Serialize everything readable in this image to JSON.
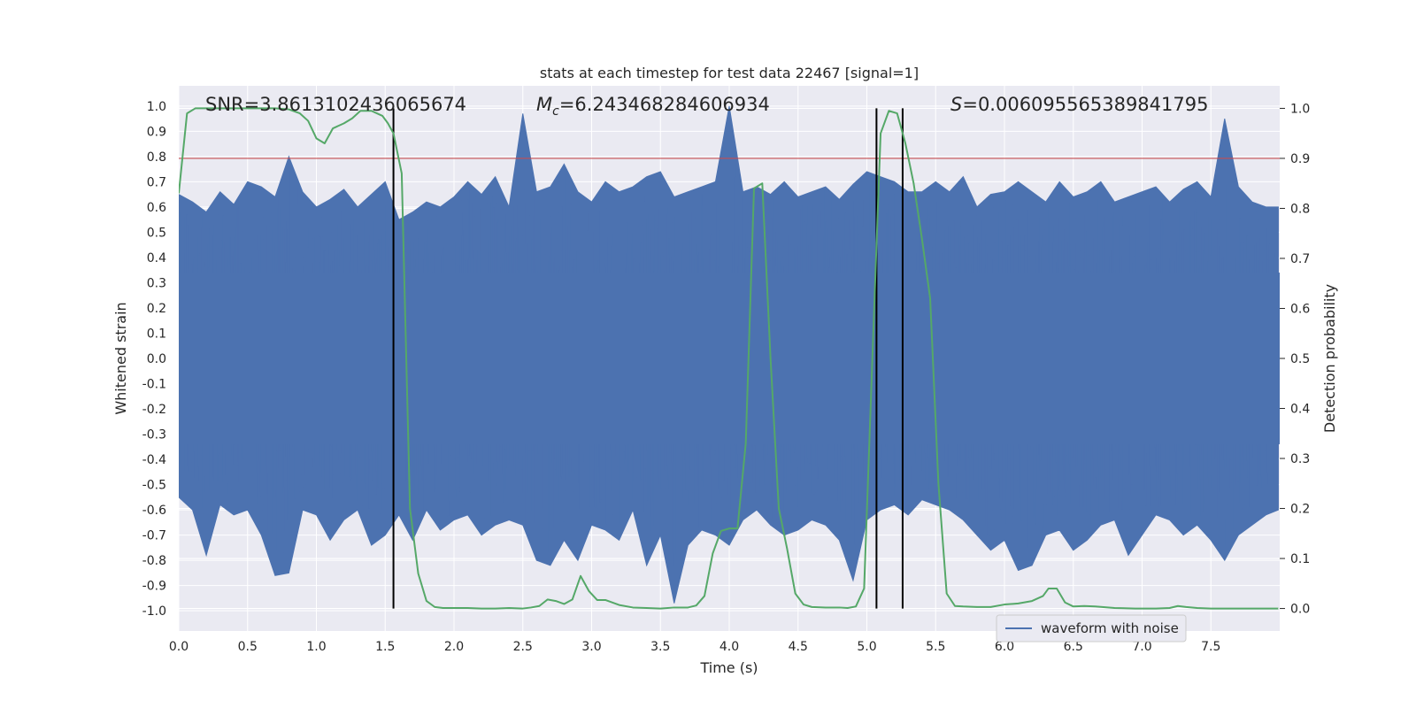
{
  "chart_data": {
    "type": "line",
    "title": "stats at each timestep for test data 22467 [signal=1]",
    "xlabel": "Time (s)",
    "ylabel": "Whitened strain",
    "y2label": "Detection probability",
    "xlim": [
      0.0,
      8.0
    ],
    "ylim": [
      -1.08,
      1.08
    ],
    "y2lim": [
      -0.045,
      1.045
    ],
    "xticks": [
      "0.0",
      "0.5",
      "1.0",
      "1.5",
      "2.0",
      "2.5",
      "3.0",
      "3.5",
      "4.0",
      "4.5",
      "5.0",
      "5.5",
      "6.0",
      "6.5",
      "7.0",
      "7.5"
    ],
    "xtick_values": [
      0.0,
      0.5,
      1.0,
      1.5,
      2.0,
      2.5,
      3.0,
      3.5,
      4.0,
      4.5,
      5.0,
      5.5,
      6.0,
      6.5,
      7.0,
      7.5
    ],
    "yticks": [
      "1.0",
      "0.9",
      "0.8",
      "0.7",
      "0.6",
      "0.5",
      "0.4",
      "0.3",
      "0.2",
      "0.1",
      "0.0",
      "-0.1",
      "-0.2",
      "-0.3",
      "-0.4",
      "-0.5",
      "-0.6",
      "-0.7",
      "-0.8",
      "-0.9",
      "-1.0"
    ],
    "ytick_values": [
      1.0,
      0.9,
      0.8,
      0.7,
      0.6,
      0.5,
      0.4,
      0.3,
      0.2,
      0.1,
      0.0,
      -0.1,
      -0.2,
      -0.3,
      -0.4,
      -0.5,
      -0.6,
      -0.7,
      -0.8,
      -0.9,
      -1.0
    ],
    "y2ticks": [
      "1.0",
      "0.9",
      "0.8",
      "0.7",
      "0.6",
      "0.5",
      "0.4",
      "0.3",
      "0.2",
      "0.1",
      "0.0"
    ],
    "y2tick_values": [
      1.0,
      0.9,
      0.8,
      0.7,
      0.6,
      0.5,
      0.4,
      0.3,
      0.2,
      0.1,
      0.0
    ],
    "annotations": {
      "snr": "SNR=3.8613102436065674",
      "mc_symbol": "M",
      "mc_subscript": "c",
      "mc_value": "=6.243468284606934",
      "s_symbol": "S",
      "s_value": "=0.006095565389841795"
    },
    "threshold": 0.9,
    "vlines": [
      1.56,
      5.07,
      5.26
    ],
    "series": [
      {
        "name": "waveform with noise",
        "color": "#4c72b0",
        "envelope_x": [
          0.0,
          0.1,
          0.2,
          0.3,
          0.4,
          0.5,
          0.6,
          0.7,
          0.8,
          0.9,
          1.0,
          1.1,
          1.2,
          1.3,
          1.4,
          1.5,
          1.6,
          1.7,
          1.8,
          1.9,
          2.0,
          2.1,
          2.2,
          2.3,
          2.4,
          2.5,
          2.6,
          2.7,
          2.8,
          2.9,
          3.0,
          3.1,
          3.2,
          3.3,
          3.4,
          3.5,
          3.6,
          3.7,
          3.8,
          3.9,
          4.0,
          4.1,
          4.2,
          4.3,
          4.4,
          4.5,
          4.6,
          4.7,
          4.8,
          4.9,
          5.0,
          5.1,
          5.2,
          5.3,
          5.4,
          5.5,
          5.6,
          5.7,
          5.8,
          5.9,
          6.0,
          6.1,
          6.2,
          6.3,
          6.4,
          6.5,
          6.6,
          6.7,
          6.8,
          6.9,
          7.0,
          7.1,
          7.2,
          7.3,
          7.4,
          7.5,
          7.6,
          7.7,
          7.8,
          7.9,
          7.99
        ],
        "envelope_max": [
          0.65,
          0.62,
          0.58,
          0.66,
          0.61,
          0.7,
          0.68,
          0.64,
          0.8,
          0.66,
          0.6,
          0.63,
          0.67,
          0.6,
          0.65,
          0.7,
          0.55,
          0.58,
          0.62,
          0.6,
          0.64,
          0.7,
          0.65,
          0.72,
          0.6,
          0.97,
          0.66,
          0.68,
          0.77,
          0.66,
          0.62,
          0.7,
          0.66,
          0.68,
          0.72,
          0.74,
          0.64,
          0.66,
          0.68,
          0.7,
          1.0,
          0.66,
          0.68,
          0.65,
          0.7,
          0.64,
          0.66,
          0.68,
          0.63,
          0.69,
          0.74,
          0.72,
          0.7,
          0.66,
          0.66,
          0.7,
          0.66,
          0.72,
          0.6,
          0.65,
          0.66,
          0.7,
          0.66,
          0.62,
          0.7,
          0.64,
          0.66,
          0.7,
          0.62,
          0.64,
          0.66,
          0.68,
          0.62,
          0.67,
          0.7,
          0.64,
          0.95,
          0.68,
          0.62,
          0.6,
          0.6
        ],
        "envelope_min": [
          -0.55,
          -0.6,
          -0.78,
          -0.58,
          -0.62,
          -0.6,
          -0.7,
          -0.86,
          -0.85,
          -0.6,
          -0.62,
          -0.72,
          -0.64,
          -0.6,
          -0.74,
          -0.7,
          -0.62,
          -0.72,
          -0.6,
          -0.68,
          -0.64,
          -0.62,
          -0.7,
          -0.66,
          -0.64,
          -0.66,
          -0.8,
          -0.82,
          -0.72,
          -0.8,
          -0.66,
          -0.68,
          -0.72,
          -0.6,
          -0.82,
          -0.7,
          -0.97,
          -0.74,
          -0.68,
          -0.7,
          -0.74,
          -0.64,
          -0.6,
          -0.66,
          -0.7,
          -0.68,
          -0.64,
          -0.66,
          -0.72,
          -0.88,
          -0.64,
          -0.6,
          -0.58,
          -0.62,
          -0.56,
          -0.58,
          -0.6,
          -0.64,
          -0.7,
          -0.76,
          -0.72,
          -0.84,
          -0.82,
          -0.7,
          -0.68,
          -0.76,
          -0.72,
          -0.66,
          -0.64,
          -0.78,
          -0.7,
          -0.62,
          -0.64,
          -0.7,
          -0.66,
          -0.72,
          -0.8,
          -0.7,
          -0.66,
          -0.62,
          -0.6
        ]
      },
      {
        "name": "detection probability",
        "color": "#55a868",
        "axis": "right",
        "x": [
          0.0,
          0.06,
          0.12,
          0.2,
          0.3,
          0.4,
          0.5,
          0.6,
          0.7,
          0.8,
          0.88,
          0.94,
          1.0,
          1.06,
          1.12,
          1.2,
          1.26,
          1.32,
          1.4,
          1.48,
          1.52,
          1.56,
          1.62,
          1.68,
          1.74,
          1.8,
          1.86,
          1.92,
          2.0,
          2.1,
          2.2,
          2.3,
          2.4,
          2.5,
          2.56,
          2.62,
          2.68,
          2.74,
          2.8,
          2.86,
          2.92,
          2.98,
          3.04,
          3.1,
          3.2,
          3.3,
          3.4,
          3.5,
          3.6,
          3.7,
          3.76,
          3.82,
          3.88,
          3.94,
          4.0,
          4.06,
          4.12,
          4.18,
          4.24,
          4.3,
          4.36,
          4.42,
          4.48,
          4.54,
          4.6,
          4.7,
          4.8,
          4.86,
          4.92,
          4.98,
          5.04,
          5.1,
          5.16,
          5.22,
          5.28,
          5.34,
          5.4,
          5.46,
          5.52,
          5.58,
          5.64,
          5.7,
          5.8,
          5.9,
          6.0,
          6.1,
          6.2,
          6.28,
          6.32,
          6.38,
          6.44,
          6.5,
          6.58,
          6.66,
          6.8,
          6.95,
          7.1,
          7.2,
          7.26,
          7.32,
          7.4,
          7.5,
          7.6,
          7.7,
          7.8,
          7.9,
          7.99
        ],
        "y": [
          0.83,
          0.99,
          1.0,
          1.0,
          1.0,
          1.0,
          1.0,
          1.0,
          1.0,
          0.998,
          0.99,
          0.975,
          0.94,
          0.93,
          0.96,
          0.97,
          0.98,
          0.995,
          0.995,
          0.985,
          0.97,
          0.95,
          0.87,
          0.2,
          0.07,
          0.015,
          0.003,
          0.001,
          0.001,
          0.001,
          0.0,
          0.0,
          0.001,
          0.0,
          0.002,
          0.005,
          0.018,
          0.015,
          0.009,
          0.018,
          0.065,
          0.035,
          0.017,
          0.017,
          0.007,
          0.002,
          0.001,
          0.0,
          0.002,
          0.002,
          0.006,
          0.025,
          0.11,
          0.155,
          0.16,
          0.16,
          0.33,
          0.84,
          0.85,
          0.5,
          0.2,
          0.12,
          0.03,
          0.008,
          0.003,
          0.002,
          0.002,
          0.001,
          0.004,
          0.04,
          0.5,
          0.95,
          0.995,
          0.99,
          0.93,
          0.85,
          0.74,
          0.62,
          0.25,
          0.03,
          0.005,
          0.004,
          0.003,
          0.003,
          0.008,
          0.01,
          0.015,
          0.025,
          0.04,
          0.04,
          0.012,
          0.004,
          0.005,
          0.004,
          0.001,
          0.0,
          0.0,
          0.001,
          0.005,
          0.003,
          0.001,
          0.0,
          0.0,
          0.0,
          0.0,
          0.0,
          0.0
        ]
      }
    ],
    "legend": {
      "label": "waveform with noise",
      "placement": "lower-right"
    },
    "grid": true,
    "colors": {
      "background": "#eaeaf2",
      "grid": "#ffffff",
      "threshold": "#c44e52",
      "vline": "#000000"
    }
  }
}
